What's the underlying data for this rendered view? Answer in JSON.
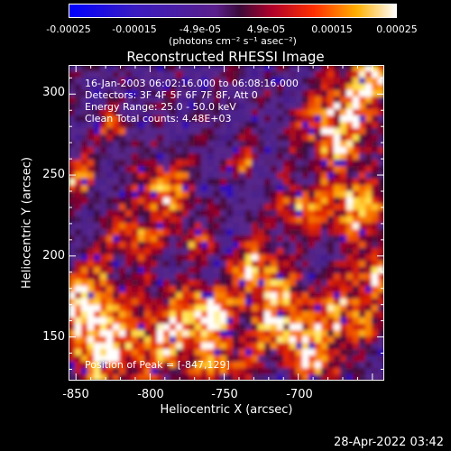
{
  "chart_data": {
    "type": "heatmap",
    "title": "Reconstructed RHESSI Image",
    "xlabel": "Heliocentric X (arcsec)",
    "ylabel": "Heliocentric Y (arcsec)",
    "xlim": [
      -855,
      -642
    ],
    "ylim": [
      123,
      318
    ],
    "xticks": [
      -850,
      -800,
      -750,
      -700
    ],
    "yticks": [
      150,
      200,
      250,
      300
    ],
    "colorbar": {
      "ticks": [
        "-0.00025",
        "-0.00015",
        "-4.9e-05",
        "4.9e-05",
        "0.00015",
        "0.00025"
      ],
      "unit": "(photons cm⁻² s⁻¹ asec⁻²)",
      "range": [
        -0.00025,
        0.00025
      ]
    },
    "annotations": [
      "16-Jan-2003 06:02:16.000 to 06:08:16.000",
      "Detectors: 3F 4F 5F 6F 7F 8F, Att 0",
      "Energy Range: 25.0 - 50.0 keV",
      "Clean     Total counts: 4.48E+03"
    ],
    "peak_label": "Position of Peak = [-847,129]"
  },
  "timestamp": "28-Apr-2022 03:42"
}
